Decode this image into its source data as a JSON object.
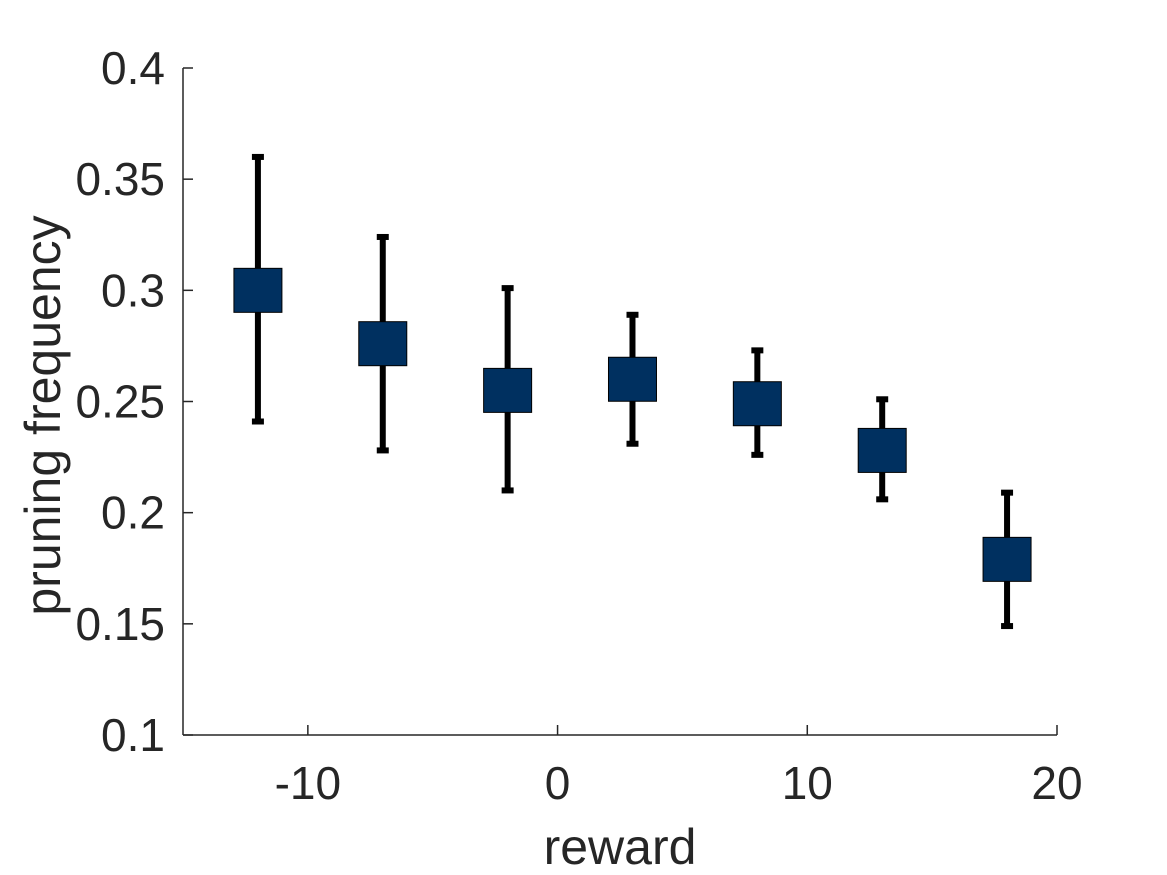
{
  "chart_data": {
    "type": "scatter",
    "xlabel": "reward",
    "ylabel": "pruning frequency",
    "xlim": [
      -15,
      20
    ],
    "ylim": [
      0.1,
      0.4
    ],
    "xticks": [
      -10,
      0,
      10,
      20
    ],
    "xtick_labels": [
      "-10",
      "0",
      "10",
      "20"
    ],
    "yticks": [
      0.1,
      0.15,
      0.2,
      0.25,
      0.3,
      0.35,
      0.4
    ],
    "ytick_labels": [
      "0.1",
      "0.15",
      "0.2",
      "0.25",
      "0.3",
      "0.35",
      "0.4"
    ],
    "grid": false,
    "marker_color": "#003060",
    "marker_shape": "square",
    "points": [
      {
        "x": -12,
        "y": 0.3,
        "lower": 0.241,
        "upper": 0.36
      },
      {
        "x": -7,
        "y": 0.276,
        "lower": 0.228,
        "upper": 0.324
      },
      {
        "x": -2,
        "y": 0.255,
        "lower": 0.21,
        "upper": 0.301
      },
      {
        "x": 3,
        "y": 0.26,
        "lower": 0.231,
        "upper": 0.289
      },
      {
        "x": 8,
        "y": 0.249,
        "lower": 0.226,
        "upper": 0.273
      },
      {
        "x": 13,
        "y": 0.228,
        "lower": 0.206,
        "upper": 0.251
      },
      {
        "x": 18,
        "y": 0.179,
        "lower": 0.149,
        "upper": 0.209
      }
    ]
  }
}
